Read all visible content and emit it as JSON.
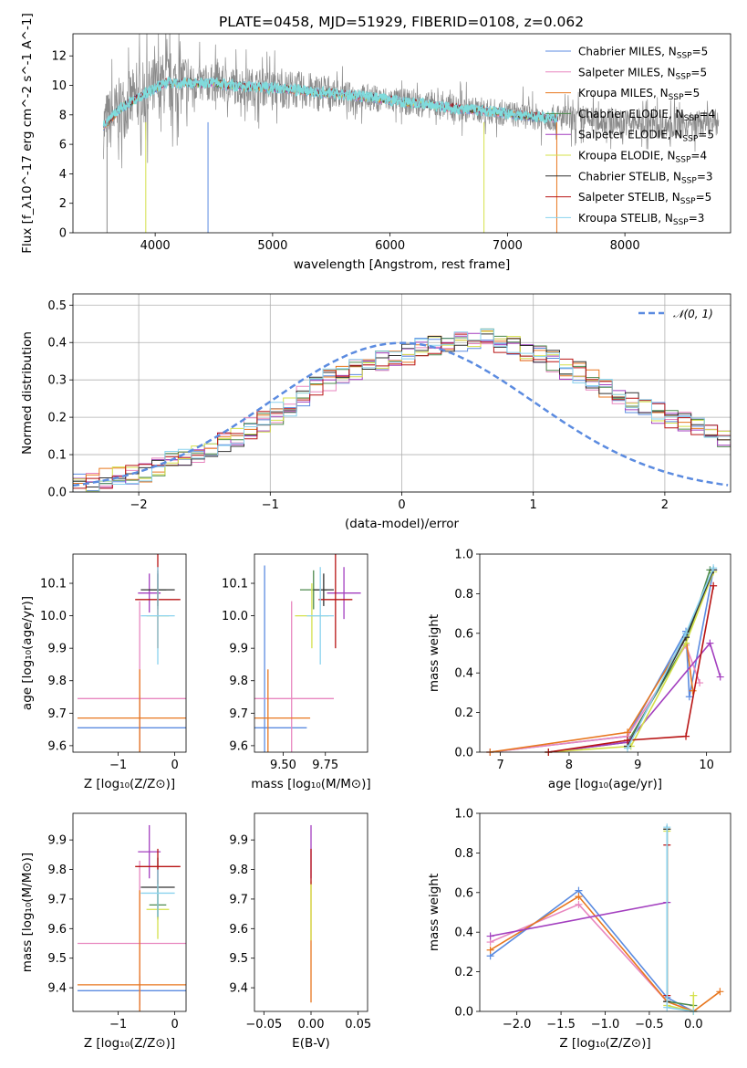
{
  "figure": {
    "title": "PLATE=0458, MJD=51929, FIBERID=0108, z=0.062"
  },
  "colors": {
    "Chabrier MILES": "#5b8be0",
    "Salpeter MILES": "#e886bf",
    "Kroupa MILES": "#e8771f",
    "Chabrier ELODIE": "#4d8a4d",
    "Salpeter ELODIE": "#a33fbf",
    "Kroupa ELODIE": "#d4e04a",
    "Chabrier STELIB": "#303030",
    "Salpeter STELIB": "#b81414",
    "Kroupa STELIB": "#8ad2ee",
    "data_grey": "#8a8a8a",
    "model_cyan": "#7fdcdc",
    "normal_dash": "#5b8be0",
    "grid": "#b0b0b0"
  },
  "chart_data": [
    {
      "id": "spectrum",
      "type": "line",
      "xlabel": "wavelength [Angstrom, rest frame]",
      "ylabel": "Flux [f_λ10^-17 erg cm^-2 s^-1 A^-1]",
      "xlim": [
        3300,
        8900
      ],
      "ylim": [
        0,
        13.5
      ],
      "xticks": [
        4000,
        5000,
        6000,
        7000,
        8000
      ],
      "yticks": [
        0,
        2,
        4,
        6,
        8,
        10,
        12
      ],
      "grid": false,
      "legend_position": "upper right",
      "legend": [
        {
          "model": "Chabrier MILES",
          "label": "Chabrier MILES, N",
          "sub": "SSP",
          "eq": "=5"
        },
        {
          "model": "Salpeter MILES",
          "label": "Salpeter MILES, N",
          "sub": "SSP",
          "eq": "=5"
        },
        {
          "model": "Kroupa MILES",
          "label": "Kroupa MILES, N",
          "sub": "SSP",
          "eq": "=5"
        },
        {
          "model": "Chabrier ELODIE",
          "label": "Chabrier ELODIE, N",
          "sub": "SSP",
          "eq": "=4"
        },
        {
          "model": "Salpeter ELODIE",
          "label": "Salpeter ELODIE, N",
          "sub": "SSP",
          "eq": "=5"
        },
        {
          "model": "Kroupa ELODIE",
          "label": "Kroupa ELODIE, N",
          "sub": "SSP",
          "eq": "=4"
        },
        {
          "model": "Chabrier STELIB",
          "label": "Chabrier STELIB, N",
          "sub": "SSP",
          "eq": "=3"
        },
        {
          "model": "Salpeter STELIB",
          "label": "Salpeter STELIB, N",
          "sub": "SSP",
          "eq": "=5"
        },
        {
          "model": "Kroupa STELIB",
          "label": "Kroupa STELIB, N",
          "sub": "SSP",
          "eq": "=3"
        }
      ],
      "data_envelope": {
        "wavelength": [
          3560,
          3700,
          3800,
          3900,
          4000,
          4100,
          4200,
          4300,
          4400,
          4500,
          4600,
          4700,
          4800,
          4900,
          5000,
          5200,
          5400,
          5600,
          5800,
          6000,
          6200,
          6400,
          6600,
          6800,
          7000,
          7200,
          7400,
          7600,
          7800,
          8000,
          8200,
          8400,
          8600,
          8800
        ],
        "flux": [
          7.2,
          8.4,
          8.9,
          9.4,
          9.8,
          10.2,
          10.1,
          10.2,
          10.1,
          10.2,
          10.0,
          10.0,
          9.9,
          9.9,
          9.8,
          9.7,
          9.5,
          9.4,
          9.2,
          9.0,
          8.8,
          8.6,
          8.4,
          8.3,
          8.1,
          7.9,
          7.8,
          7.7,
          7.6,
          7.5,
          7.4,
          7.3,
          7.4,
          7.5
        ]
      },
      "model_start": 3560,
      "model_end": 7430
    },
    {
      "id": "residuals",
      "type": "area",
      "xlabel": "(data-model)/error",
      "ylabel": "Normed distribution",
      "xlim": [
        -2.5,
        2.5
      ],
      "ylim": [
        0,
        0.53
      ],
      "xticks": [
        -2,
        -1,
        0,
        1,
        2
      ],
      "ytick_labels": [
        "0.0",
        "0.1",
        "0.2",
        "0.3",
        "0.4",
        "0.5"
      ],
      "yticks": [
        0,
        0.1,
        0.2,
        0.3,
        0.4,
        0.5
      ],
      "grid": true,
      "legend_position": "upper right",
      "legend": [
        {
          "label": "𝒩(0, 1)"
        }
      ],
      "bin_edges_start": -2.5,
      "bin_width": 0.1,
      "histogram_reference": [
        0.025,
        0.028,
        0.035,
        0.045,
        0.05,
        0.055,
        0.065,
        0.08,
        0.09,
        0.105,
        0.12,
        0.135,
        0.15,
        0.17,
        0.19,
        0.21,
        0.23,
        0.255,
        0.28,
        0.3,
        0.31,
        0.33,
        0.34,
        0.35,
        0.36,
        0.37,
        0.385,
        0.39,
        0.395,
        0.4,
        0.41,
        0.41,
        0.4,
        0.39,
        0.38,
        0.37,
        0.35,
        0.33,
        0.32,
        0.3,
        0.28,
        0.26,
        0.24,
        0.22,
        0.21,
        0.2,
        0.185,
        0.175,
        0.16,
        0.145,
        0.135,
        0.12,
        0.105,
        0.09,
        0.08,
        0.07,
        0.06,
        0.055,
        0.045,
        0.04,
        0.035
      ]
    },
    {
      "id": "age-vs-Z",
      "type": "scatter",
      "xlabel": "Z [log₁₀(Z/Z⊙)]",
      "ylabel": "age  [log₁₀(age/yr)]",
      "xlim": [
        -1.8,
        0.2
      ],
      "ylim": [
        9.58,
        10.19
      ],
      "xticks": [
        -1,
        0
      ],
      "yticks": [
        9.6,
        9.7,
        9.8,
        9.9,
        10.0,
        10.1
      ],
      "ytick_labels": [
        "9.6",
        "9.7",
        "9.8",
        "9.9",
        "10.0",
        "10.1"
      ],
      "points": [
        {
          "model": "Chabrier MILES",
          "x": -0.62,
          "y": 9.655,
          "xerr": 1.1,
          "yerr": 0.1
        },
        {
          "model": "Salpeter MILES",
          "x": -0.62,
          "y": 9.745,
          "xerr": 1.1,
          "yerr": 0.3
        },
        {
          "model": "Kroupa MILES",
          "x": -0.62,
          "y": 9.685,
          "xerr": 1.1,
          "yerr": 0.15
        },
        {
          "model": "Chabrier ELODIE",
          "x": -0.3,
          "y": 10.08,
          "xerr": 0.15,
          "yerr": 0.06
        },
        {
          "model": "Salpeter ELODIE",
          "x": -0.45,
          "y": 10.07,
          "xerr": 0.2,
          "yerr": 0.06
        },
        {
          "model": "Kroupa ELODIE",
          "x": -0.3,
          "y": 10.0,
          "xerr": 0.2,
          "yerr": 0.1
        },
        {
          "model": "Chabrier STELIB",
          "x": -0.3,
          "y": 10.08,
          "xerr": 0.3,
          "yerr": 0.05
        },
        {
          "model": "Salpeter STELIB",
          "x": -0.3,
          "y": 10.05,
          "xerr": 0.4,
          "yerr": 0.15
        },
        {
          "model": "Kroupa STELIB",
          "x": -0.3,
          "y": 10.0,
          "xerr": 0.3,
          "yerr": 0.15
        }
      ]
    },
    {
      "id": "age-vs-mass",
      "type": "scatter",
      "xlabel": "mass [log₁₀(M/M⊙)]",
      "ylabel": "",
      "xlim": [
        9.33,
        10.0
      ],
      "ylim": [
        9.58,
        10.19
      ],
      "xticks": [
        9.5,
        9.75
      ],
      "xtick_labels": [
        "9.50",
        "9.75"
      ],
      "yticks": [
        9.6,
        9.7,
        9.8,
        9.9,
        10.0,
        10.1
      ],
      "ytick_labels": [
        "9.6",
        "9.7",
        "9.8",
        "9.9",
        "10.0",
        "10.1"
      ],
      "points": [
        {
          "model": "Chabrier MILES",
          "x": 9.39,
          "y": 9.655,
          "xerr": 0.25,
          "yerr": 0.5
        },
        {
          "model": "Salpeter MILES",
          "x": 9.55,
          "y": 9.745,
          "xerr": 0.25,
          "yerr": 0.3
        },
        {
          "model": "Kroupa MILES",
          "x": 9.41,
          "y": 9.685,
          "xerr": 0.25,
          "yerr": 0.15
        },
        {
          "model": "Chabrier ELODIE",
          "x": 9.68,
          "y": 10.08,
          "xerr": 0.08,
          "yerr": 0.06
        },
        {
          "model": "Salpeter ELODIE",
          "x": 9.86,
          "y": 10.07,
          "xerr": 0.1,
          "yerr": 0.08
        },
        {
          "model": "Kroupa ELODIE",
          "x": 9.67,
          "y": 10.0,
          "xerr": 0.1,
          "yerr": 0.1
        },
        {
          "model": "Chabrier STELIB",
          "x": 9.74,
          "y": 10.08,
          "xerr": 0.06,
          "yerr": 0.05
        },
        {
          "model": "Salpeter STELIB",
          "x": 9.81,
          "y": 10.05,
          "xerr": 0.1,
          "yerr": 0.15
        },
        {
          "model": "Kroupa STELIB",
          "x": 9.72,
          "y": 10.0,
          "xerr": 0.08,
          "yerr": 0.15
        }
      ]
    },
    {
      "id": "weight-vs-age",
      "type": "line",
      "xlabel": "age  [log₁₀(age/yr)]",
      "ylabel": "mass weight",
      "xlim": [
        6.7,
        10.35
      ],
      "ylim": [
        0,
        1.0
      ],
      "xticks": [
        7,
        8,
        9,
        10
      ],
      "yticks": [
        0,
        0.2,
        0.4,
        0.6,
        0.8,
        1.0
      ],
      "ytick_labels": [
        "0.0",
        "0.2",
        "0.4",
        "0.6",
        "0.8",
        "1.0"
      ],
      "series": [
        {
          "model": "Chabrier MILES",
          "x": [
            6.85,
            8.85,
            9.7,
            9.75,
            10.1
          ],
          "y": [
            0.0,
            0.08,
            0.61,
            0.28,
            0.92
          ]
        },
        {
          "model": "Salpeter MILES",
          "x": [
            6.85,
            8.85,
            9.7,
            9.9
          ],
          "y": [
            0.0,
            0.08,
            0.54,
            0.35
          ]
        },
        {
          "model": "Kroupa MILES",
          "x": [
            6.85,
            8.85,
            9.7,
            9.8
          ],
          "y": [
            0.0,
            0.1,
            0.58,
            0.31
          ]
        },
        {
          "model": "Chabrier ELODIE",
          "x": [
            7.7,
            8.85,
            9.7,
            10.05
          ],
          "y": [
            0.0,
            0.05,
            0.55,
            0.92
          ]
        },
        {
          "model": "Salpeter ELODIE",
          "x": [
            7.7,
            8.85,
            10.05,
            10.2
          ],
          "y": [
            0.0,
            0.05,
            0.55,
            0.38
          ]
        },
        {
          "model": "Kroupa ELODIE",
          "x": [
            7.7,
            8.9,
            9.7,
            10.1
          ],
          "y": [
            0.0,
            0.03,
            0.55,
            0.91
          ]
        },
        {
          "model": "Chabrier STELIB",
          "x": [
            8.85,
            9.7,
            10.1
          ],
          "y": [
            0.03,
            0.58,
            0.92
          ]
        },
        {
          "model": "Salpeter STELIB",
          "x": [
            7.7,
            8.85,
            9.7,
            10.1
          ],
          "y": [
            0.0,
            0.06,
            0.08,
            0.84
          ]
        },
        {
          "model": "Kroupa STELIB",
          "x": [
            8.85,
            9.7,
            10.1
          ],
          "y": [
            0.02,
            0.6,
            0.93
          ]
        }
      ]
    },
    {
      "id": "mass-vs-Z",
      "type": "scatter",
      "xlabel": "Z [log₁₀(Z/Z⊙)]",
      "ylabel": "mass [log₁₀(M/M⊙)]",
      "xlim": [
        -1.8,
        0.2
      ],
      "ylim": [
        9.32,
        9.99
      ],
      "xticks": [
        -1,
        0
      ],
      "yticks": [
        9.4,
        9.5,
        9.6,
        9.7,
        9.8,
        9.9
      ],
      "ytick_labels": [
        "9.4",
        "9.5",
        "9.6",
        "9.7",
        "9.8",
        "9.9"
      ],
      "points": [
        {
          "model": "Chabrier MILES",
          "x": -0.62,
          "y": 9.39,
          "xerr": 1.1,
          "yerr": 0.05
        },
        {
          "model": "Salpeter MILES",
          "x": -0.62,
          "y": 9.55,
          "xerr": 1.1,
          "yerr": 0.28
        },
        {
          "model": "Kroupa MILES",
          "x": -0.62,
          "y": 9.41,
          "xerr": 1.1,
          "yerr": 0.32
        },
        {
          "model": "Chabrier ELODIE",
          "x": -0.3,
          "y": 9.68,
          "xerr": 0.15,
          "yerr": 0.05
        },
        {
          "model": "Salpeter ELODIE",
          "x": -0.45,
          "y": 9.86,
          "xerr": 0.2,
          "yerr": 0.09
        },
        {
          "model": "Kroupa ELODIE",
          "x": -0.3,
          "y": 9.665,
          "xerr": 0.2,
          "yerr": 0.1
        },
        {
          "model": "Chabrier STELIB",
          "x": -0.3,
          "y": 9.74,
          "xerr": 0.3,
          "yerr": 0.1
        },
        {
          "model": "Salpeter STELIB",
          "x": -0.3,
          "y": 9.81,
          "xerr": 0.4,
          "yerr": 0.06
        },
        {
          "model": "Kroupa STELIB",
          "x": -0.3,
          "y": 9.72,
          "xerr": 0.3,
          "yerr": 0.08
        }
      ]
    },
    {
      "id": "mass-vs-EBV",
      "type": "scatter",
      "xlabel": "E(B-V)",
      "ylabel": "",
      "xlim": [
        -0.06,
        0.06
      ],
      "ylim": [
        9.32,
        9.99
      ],
      "xticks": [
        -0.05,
        0.0,
        0.05
      ],
      "xtick_labels": [
        "−0.05",
        "0.00",
        "0.05"
      ],
      "yticks": [
        9.4,
        9.5,
        9.6,
        9.7,
        9.8,
        9.9
      ],
      "ytick_labels": [
        "9.4",
        "9.5",
        "9.6",
        "9.7",
        "9.8",
        "9.9"
      ],
      "points": [
        {
          "model": "Kroupa MILES",
          "x": 0.0,
          "y": 9.55,
          "xerr": 0,
          "yerr": 0.2
        },
        {
          "model": "Salpeter ELODIE",
          "x": 0.0,
          "y": 9.86,
          "xerr": 0,
          "yerr": 0.09
        },
        {
          "model": "Kroupa ELODIE",
          "x": 0.0,
          "y": 9.66,
          "xerr": 0,
          "yerr": 0.1
        },
        {
          "model": "Salpeter STELIB",
          "x": 0.0,
          "y": 9.81,
          "xerr": 0,
          "yerr": 0.06
        }
      ]
    },
    {
      "id": "weight-vs-Z",
      "type": "line",
      "xlabel": "Z [log₁₀(Z/Z⊙)]",
      "ylabel": "mass weight",
      "xlim": [
        -2.42,
        0.42
      ],
      "ylim": [
        0,
        1.0
      ],
      "xticks": [
        -2.0,
        -1.5,
        -1.0,
        -0.5,
        0.0
      ],
      "xtick_labels": [
        "−2.0",
        "−1.5",
        "−1.0",
        "−0.5",
        "0.0"
      ],
      "yticks": [
        0,
        0.2,
        0.4,
        0.6,
        0.8,
        1.0
      ],
      "ytick_labels": [
        "0.0",
        "0.2",
        "0.4",
        "0.6",
        "0.8",
        "1.0"
      ],
      "series": [
        {
          "model": "Chabrier MILES",
          "x": [
            -2.3,
            -1.3,
            -0.3,
            0.0
          ],
          "y": [
            0.28,
            0.61,
            0.07,
            0.0
          ]
        },
        {
          "model": "Salpeter MILES",
          "x": [
            -2.3,
            -1.3,
            -0.3,
            0.0
          ],
          "y": [
            0.35,
            0.54,
            0.05,
            0.0
          ]
        },
        {
          "model": "Kroupa MILES",
          "x": [
            -2.3,
            -1.3,
            -0.3,
            0.0,
            0.3
          ],
          "y": [
            0.31,
            0.58,
            0.05,
            0.0,
            0.1
          ]
        },
        {
          "model": "Chabrier ELODIE",
          "x": [
            -0.3,
            -0.3,
            0.0
          ],
          "y": [
            0.92,
            0.05,
            0.03
          ]
        },
        {
          "model": "Salpeter ELODIE",
          "x": [
            -2.3,
            -0.3
          ],
          "y": [
            0.38,
            0.55
          ]
        },
        {
          "model": "Kroupa ELODIE",
          "x": [
            -0.3,
            -0.3,
            0.0,
            0.0
          ],
          "y": [
            0.91,
            0.03,
            0.0,
            0.08
          ]
        },
        {
          "model": "Chabrier STELIB",
          "x": [
            -0.3,
            -0.3
          ],
          "y": [
            0.92,
            0.05
          ]
        },
        {
          "model": "Salpeter STELIB",
          "x": [
            -0.3,
            -0.3
          ],
          "y": [
            0.84,
            0.08
          ]
        },
        {
          "model": "Kroupa STELIB",
          "x": [
            -0.3,
            -0.3,
            0.0
          ],
          "y": [
            0.93,
            0.02,
            0.0
          ]
        }
      ]
    }
  ]
}
